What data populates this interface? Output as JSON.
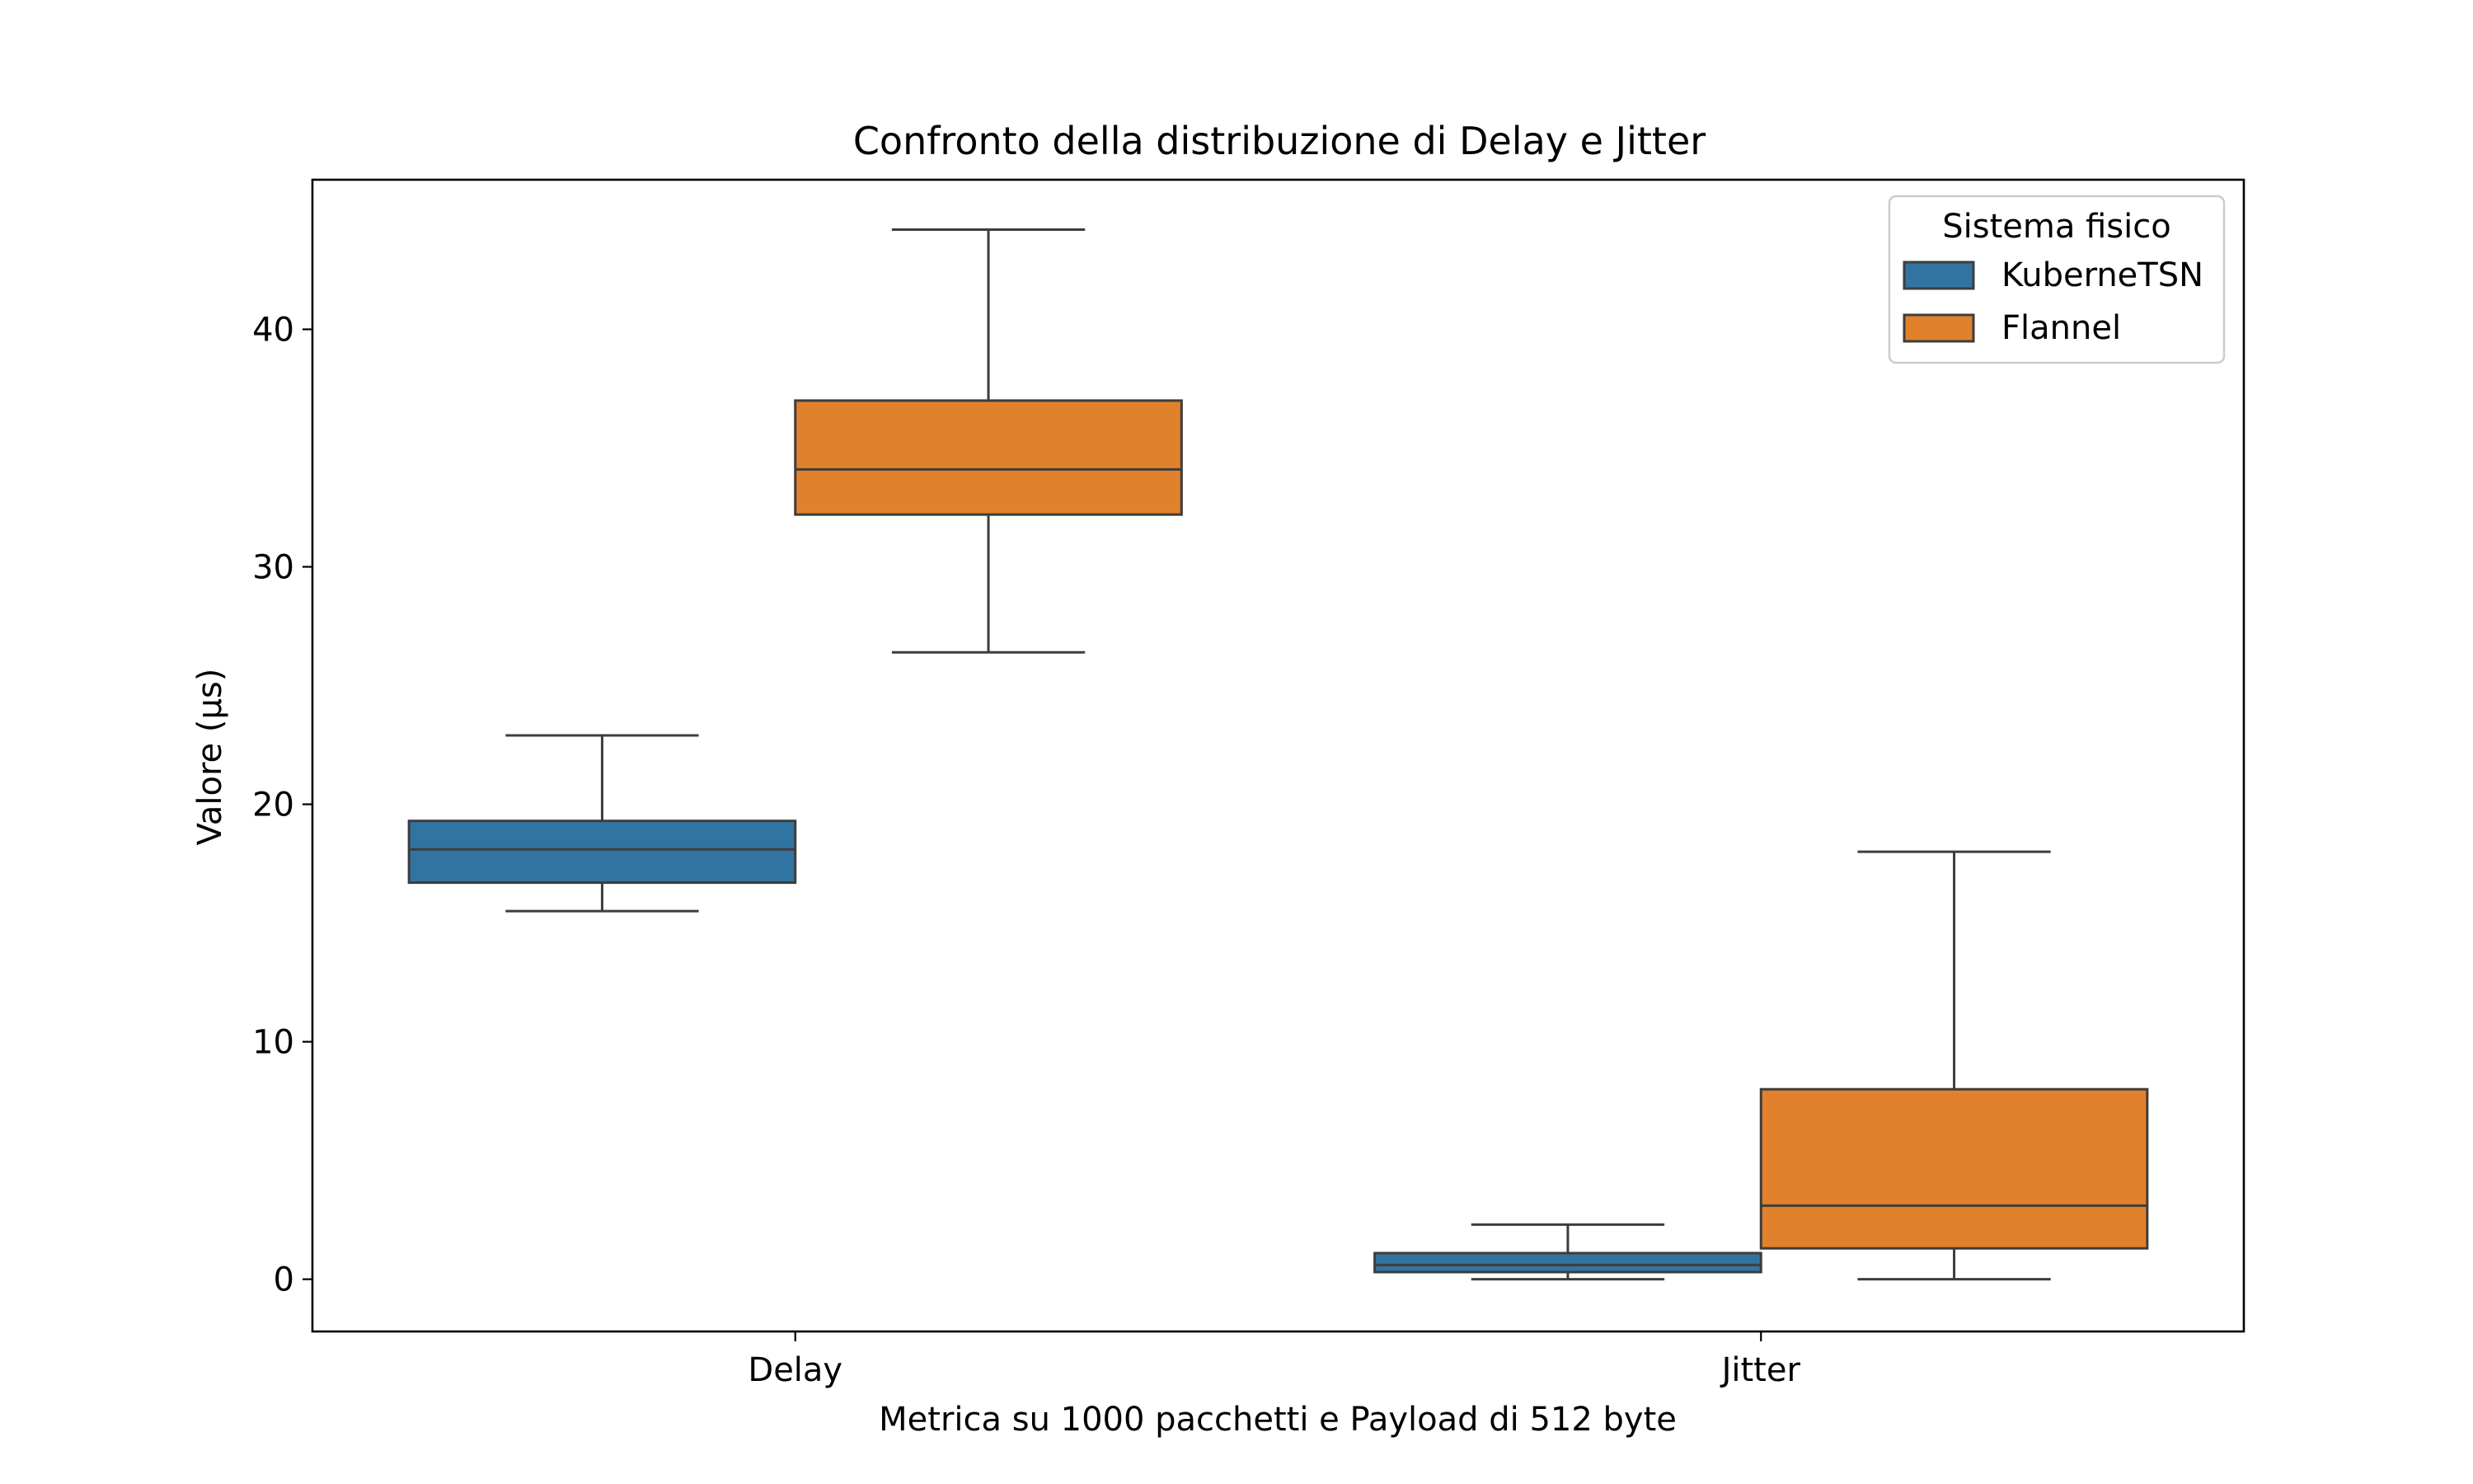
{
  "chart_data": {
    "type": "box",
    "title": "Confronto della distribuzione di Delay e Jitter",
    "xlabel": "Metrica su 1000 pacchetti e Payload di 512 byte",
    "ylabel": "Valore (µs)",
    "categories": [
      "Delay",
      "Jitter"
    ],
    "ylim": [
      -2.2,
      46.3
    ],
    "yticks": [
      0,
      10,
      20,
      30,
      40
    ],
    "grid": false,
    "legend": {
      "title": "Sistema fisico",
      "placement": "top-right"
    },
    "series": [
      {
        "name": "KuberneTSN",
        "color": "#3274a1",
        "boxes": [
          {
            "category": "Delay",
            "whisker_low": 15.5,
            "q1": 16.7,
            "median": 18.1,
            "q3": 19.3,
            "whisker_high": 22.9
          },
          {
            "category": "Jitter",
            "whisker_low": 0.0,
            "q1": 0.3,
            "median": 0.6,
            "q3": 1.1,
            "whisker_high": 2.3
          }
        ]
      },
      {
        "name": "Flannel",
        "color": "#e1812c",
        "boxes": [
          {
            "category": "Delay",
            "whisker_low": 26.4,
            "q1": 32.2,
            "median": 34.1,
            "q3": 37.0,
            "whisker_high": 44.2
          },
          {
            "category": "Jitter",
            "whisker_low": 0.0,
            "q1": 1.3,
            "median": 3.1,
            "q3": 8.0,
            "whisker_high": 18.0
          }
        ]
      }
    ]
  }
}
